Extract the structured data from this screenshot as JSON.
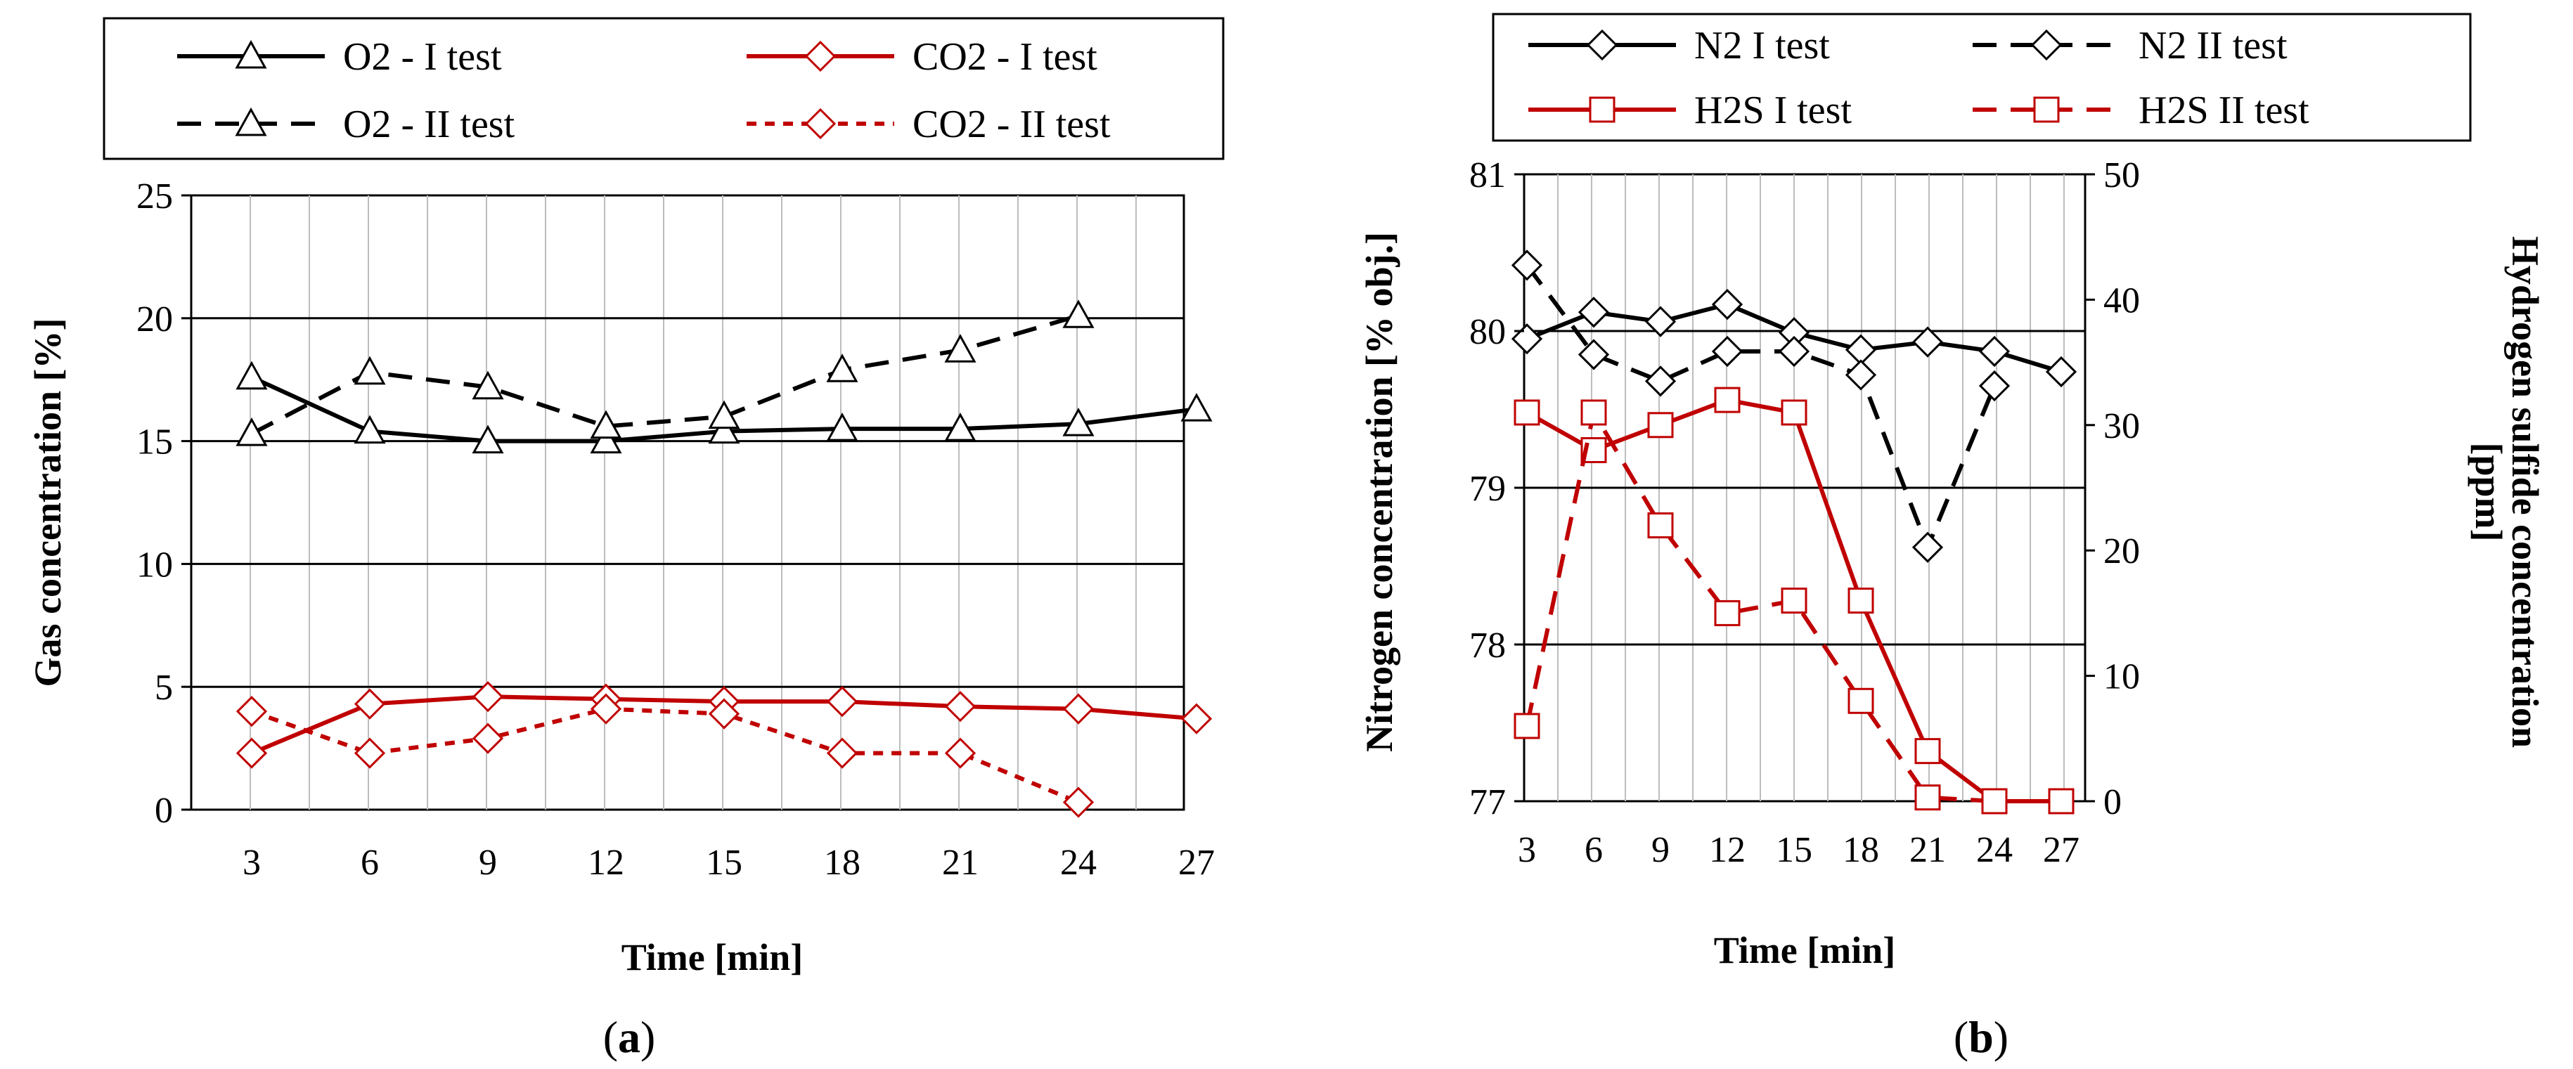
{
  "chart_data": [
    {
      "id": "a",
      "type": "line",
      "caption_letter": "a",
      "xlabel": "Time [min]",
      "ylabel": "Gas concentration [%]",
      "xticks": [
        3,
        6,
        9,
        12,
        15,
        18,
        21,
        24,
        27
      ],
      "ylim": [
        0,
        25
      ],
      "yticks": [
        0,
        5,
        10,
        15,
        20,
        25
      ],
      "grid": "vertical and horizontal",
      "legend_position": "top",
      "series": [
        {
          "name": "O2 - I test",
          "color": "#000000",
          "dash": "solid",
          "marker": "triangle",
          "x": [
            3,
            6,
            9,
            12,
            15,
            18,
            21,
            24,
            27
          ],
          "y": [
            17.6,
            15.4,
            15.0,
            15.0,
            15.4,
            15.5,
            15.5,
            15.7,
            16.3
          ]
        },
        {
          "name": "CO2 - I test",
          "color": "#c00000",
          "dash": "solid",
          "marker": "diamond",
          "x": [
            3,
            6,
            9,
            12,
            15,
            18,
            21,
            24,
            27
          ],
          "y": [
            2.3,
            4.3,
            4.6,
            4.5,
            4.4,
            4.4,
            4.2,
            4.1,
            3.7
          ]
        },
        {
          "name": "O2 - II test",
          "color": "#000000",
          "dash": "long",
          "marker": "triangle",
          "x": [
            3,
            6,
            9,
            12,
            15,
            18,
            21,
            24
          ],
          "y": [
            15.3,
            17.8,
            17.2,
            15.6,
            16.0,
            17.9,
            18.7,
            20.1
          ]
        },
        {
          "name": "CO2 - II test",
          "color": "#c00000",
          "dash": "short",
          "marker": "diamond",
          "x": [
            3,
            6,
            9,
            12,
            15,
            18,
            21,
            24
          ],
          "y": [
            4.0,
            2.3,
            2.9,
            4.1,
            3.9,
            2.3,
            2.3,
            0.3
          ]
        }
      ]
    },
    {
      "id": "b",
      "type": "line",
      "caption_letter": "b",
      "xlabel": "Time [min]",
      "ylabel_left": "Nitrogen concentration  [% obj.]",
      "ylabel_right_line1": "Hydrogen sulfide concentration",
      "ylabel_right_line2": "[ppm]",
      "xticks": [
        3,
        6,
        9,
        12,
        15,
        18,
        21,
        24,
        27
      ],
      "ylim_left": [
        77,
        81
      ],
      "yticks_left": [
        77,
        78,
        79,
        80,
        81
      ],
      "ylim_right": [
        0,
        50
      ],
      "yticks_right": [
        0,
        10,
        20,
        30,
        40,
        50
      ],
      "grid": "vertical and horizontal",
      "legend_position": "top",
      "series": [
        {
          "name": "N2 I test",
          "axis": "left",
          "color": "#000000",
          "dash": "solid",
          "marker": "diamond",
          "x": [
            3,
            6,
            9,
            12,
            15,
            18,
            21,
            24,
            27
          ],
          "y": [
            79.95,
            80.12,
            80.06,
            80.17,
            79.99,
            79.88,
            79.93,
            79.87,
            79.74
          ]
        },
        {
          "name": "N2 II test",
          "axis": "left",
          "color": "#000000",
          "dash": "long",
          "marker": "diamond",
          "x": [
            3,
            6,
            9,
            12,
            15,
            18,
            21,
            24
          ],
          "y": [
            80.42,
            79.85,
            79.68,
            79.87,
            79.87,
            79.72,
            78.62,
            79.65
          ]
        },
        {
          "name": "H2S I test",
          "axis": "right",
          "color": "#c00000",
          "dash": "solid",
          "marker": "square",
          "x": [
            3,
            6,
            9,
            12,
            15,
            18,
            21,
            24,
            27
          ],
          "y": [
            31,
            28,
            30,
            32,
            31,
            16,
            4,
            0,
            0
          ]
        },
        {
          "name": "H2S II test",
          "axis": "right",
          "color": "#c00000",
          "dash": "long",
          "marker": "square",
          "x": [
            3,
            6,
            9,
            12,
            15,
            18,
            21,
            24
          ],
          "y": [
            6,
            31,
            22,
            15,
            16,
            8,
            0.3,
            0
          ]
        }
      ]
    }
  ]
}
